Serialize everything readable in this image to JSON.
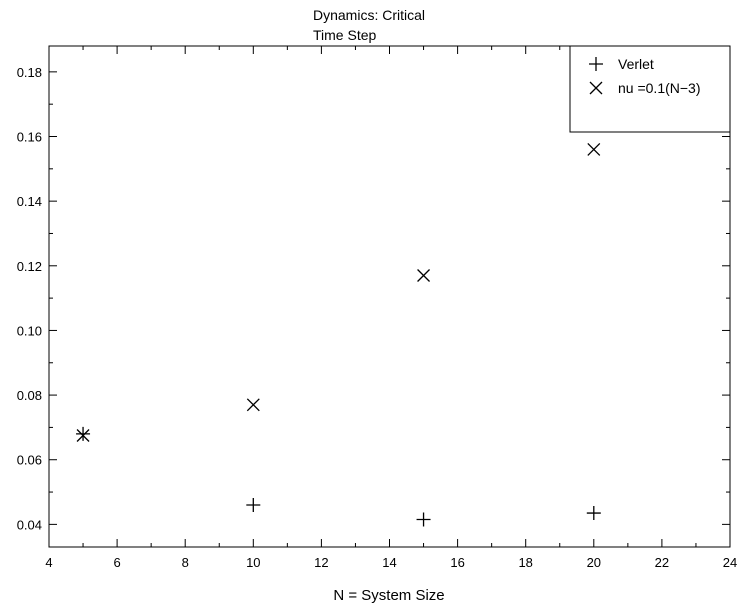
{
  "chart_data": {
    "type": "scatter",
    "title": [
      "Dynamics: Critical",
      "Time Step"
    ],
    "xlabel": "N = System Size",
    "ylabel": "",
    "xlim": [
      4,
      24
    ],
    "ylim": [
      0.033,
      0.188
    ],
    "x_ticks": [
      4,
      6,
      8,
      10,
      12,
      14,
      16,
      18,
      20,
      22,
      24
    ],
    "x_tick_labels": [
      "4",
      "6",
      "8",
      "10",
      "12",
      "14",
      "16",
      "18",
      "20",
      "22",
      "24"
    ],
    "y_ticks": [
      0.04,
      0.06,
      0.08,
      0.1,
      0.12,
      0.14,
      0.16,
      0.18
    ],
    "y_tick_labels": [
      "0.04",
      "0.06",
      "0.08",
      "0.10",
      "0.12",
      "0.14",
      "0.16",
      "0.18"
    ],
    "grid": false,
    "legend_position": "top-right",
    "series": [
      {
        "name": "Verlet",
        "marker": "plus",
        "color": "#000000",
        "x": [
          5,
          10,
          15,
          20
        ],
        "y": [
          0.068,
          0.046,
          0.0415,
          0.0435
        ]
      },
      {
        "name": "nu =0.1(N−3)",
        "marker": "x",
        "color": "#000000",
        "x": [
          5,
          10,
          15,
          20
        ],
        "y": [
          0.0675,
          0.077,
          0.117,
          0.156
        ]
      }
    ]
  }
}
